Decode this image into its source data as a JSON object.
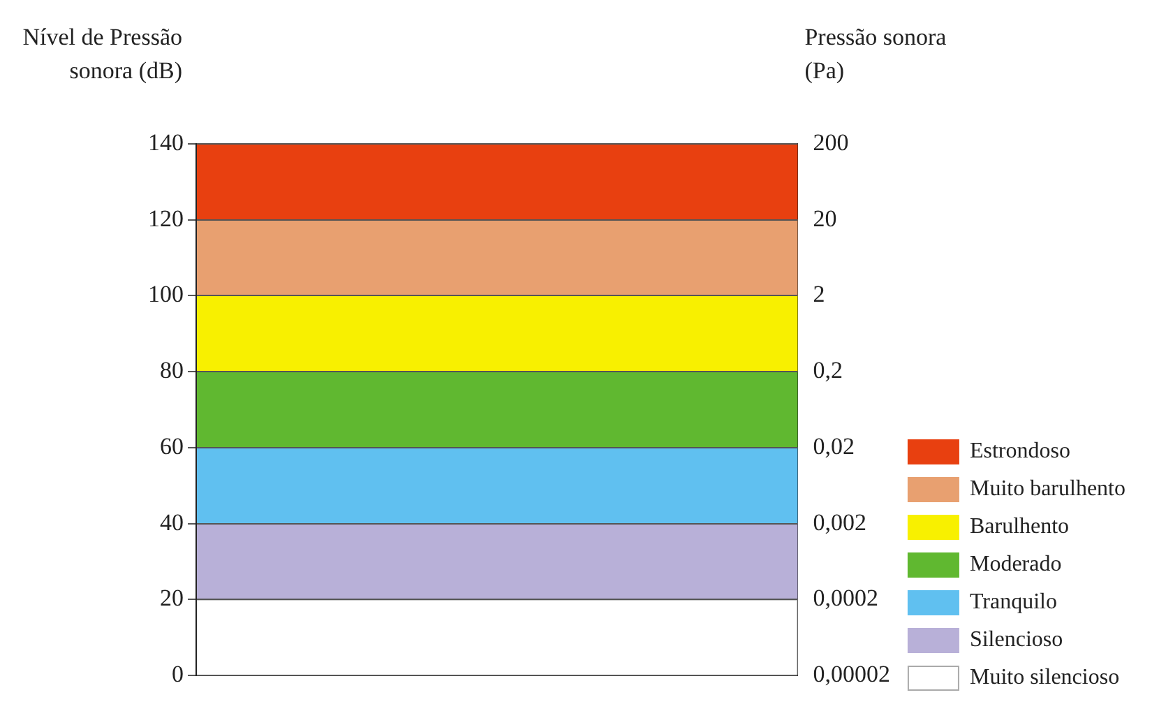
{
  "chart_data": {
    "type": "bar",
    "stacked": true,
    "categories": [
      null
    ],
    "ylabel": "Nível de Pressão sonora (dB)",
    "y2label": "Pressão sonora (Pa)",
    "series": [
      {
        "name": "Muito silencioso",
        "color": "#ffffff",
        "values": [
          20
        ]
      },
      {
        "name": "Silencioso",
        "color": "#b8b0d8",
        "values": [
          20
        ]
      },
      {
        "name": "Tranquilo",
        "color": "#60c0f0",
        "values": [
          20
        ]
      },
      {
        "name": "Moderado",
        "color": "#60b830",
        "values": [
          20
        ]
      },
      {
        "name": "Barulhento",
        "color": "#f8f000",
        "values": [
          20
        ]
      },
      {
        "name": "Muito barulhento",
        "color": "#e8a070",
        "values": [
          20
        ]
      },
      {
        "name": "Estrondoso",
        "color": "#e84010",
        "values": [
          20
        ]
      }
    ],
    "ylim": [
      0,
      140
    ],
    "yticks": [
      0,
      20,
      40,
      60,
      80,
      100,
      120,
      140
    ],
    "log": "y2",
    "y2lim": [
      2e-05,
      200
    ],
    "y2ticks": [
      {
        "value": 2e-05,
        "label": "0,00002"
      },
      {
        "value": 0.0002,
        "label": "0,0002"
      },
      {
        "value": 0.002,
        "label": "0,002"
      },
      {
        "value": 0.02,
        "label": "0,02"
      },
      {
        "value": 0.2,
        "label": "0,2"
      },
      2,
      20,
      200
    ],
    "grid": "y",
    "legend": "bottom right"
  }
}
